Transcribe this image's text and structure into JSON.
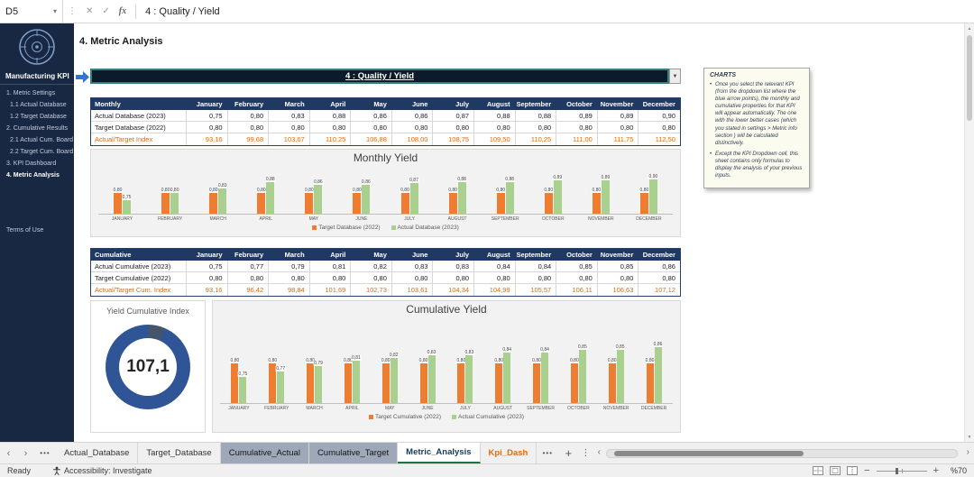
{
  "app": {
    "name_box": "D5",
    "formula": "4 : Quality / Yield"
  },
  "icons": {
    "name_box_arrow": "▾",
    "cancel": "✕",
    "enter": "✓",
    "fx": "fx",
    "grip": "⋮",
    "dropdown": "▼",
    "tab_prev": "‹",
    "tab_next": "›",
    "ellipsis": "•••",
    "add_sheet": "+",
    "more": "⋮",
    "scroll_up": "▲",
    "scroll_down": "▼",
    "scroll_left": "‹",
    "scroll_right": "›",
    "zoom_out": "−",
    "zoom_in": "+"
  },
  "sidebar": {
    "title": "Manufacturing KPI",
    "items": [
      {
        "label": "1. Metric Settings",
        "indent": 0,
        "active": false
      },
      {
        "label": "1.1 Actual Database",
        "indent": 1,
        "active": false
      },
      {
        "label": "1.2 Target Database",
        "indent": 1,
        "active": false
      },
      {
        "label": "2. Cumulative Results",
        "indent": 0,
        "active": false
      },
      {
        "label": "2.1 Actual Cum. Board",
        "indent": 1,
        "active": false
      },
      {
        "label": "2.2 Target Cum. Board",
        "indent": 1,
        "active": false
      },
      {
        "label": "3. KPI Dashboard",
        "indent": 0,
        "active": false
      },
      {
        "label": "4. Metric Analysis",
        "indent": 0,
        "active": true
      }
    ],
    "footer_link": "Terms of Use"
  },
  "main": {
    "section_title": "4. Metric Analysis",
    "kpi_selector": {
      "label": "4 : Quality / Yield"
    },
    "monthly_table": {
      "corner": "Monthly",
      "months": [
        "January",
        "February",
        "March",
        "April",
        "May",
        "June",
        "July",
        "August",
        "September",
        "October",
        "November",
        "December"
      ],
      "rows": [
        {
          "label": "Actual Database (2023)",
          "accent": false,
          "values": [
            "0,75",
            "0,80",
            "0,83",
            "0,88",
            "0,86",
            "0,86",
            "0,87",
            "0,88",
            "0,88",
            "0,89",
            "0,89",
            "0,90"
          ]
        },
        {
          "label": "Target Database (2022)",
          "accent": false,
          "values": [
            "0,80",
            "0,80",
            "0,80",
            "0,80",
            "0,80",
            "0,80",
            "0,80",
            "0,80",
            "0,80",
            "0,80",
            "0,80",
            "0,80"
          ]
        },
        {
          "label": "Actual/Target Index",
          "accent": true,
          "values": [
            "93,16",
            "99,68",
            "103,67",
            "110,25",
            "106,88",
            "108,00",
            "108,75",
            "109,50",
            "110,25",
            "111,00",
            "111,75",
            "112,50"
          ]
        }
      ]
    },
    "cumulative_table": {
      "corner": "Cumulative",
      "months": [
        "January",
        "February",
        "March",
        "April",
        "May",
        "June",
        "July",
        "August",
        "September",
        "October",
        "November",
        "December"
      ],
      "rows": [
        {
          "label": "Actual Cumulative (2023)",
          "accent": false,
          "values": [
            "0,75",
            "0,77",
            "0,79",
            "0,81",
            "0,82",
            "0,83",
            "0,83",
            "0,84",
            "0,84",
            "0,85",
            "0,85",
            "0,86"
          ]
        },
        {
          "label": "Target Cumulative (2022)",
          "accent": false,
          "values": [
            "0,80",
            "0,80",
            "0,80",
            "0,80",
            "0,80",
            "0,80",
            "0,80",
            "0,80",
            "0,80",
            "0,80",
            "0,80",
            "0,80"
          ]
        },
        {
          "label": "Actual/Target Cum. Index",
          "accent": true,
          "values": [
            "93,16",
            "96,42",
            "98,84",
            "101,69",
            "102,73",
            "103,61",
            "104,34",
            "104,99",
            "105,57",
            "106,11",
            "106,63",
            "107,12"
          ]
        }
      ]
    },
    "donut": {
      "title": "Yield Cumulative Index",
      "value": "107,1"
    }
  },
  "chart_data": [
    {
      "type": "bar",
      "title": "Monthly Yield",
      "categories": [
        "JANUARY",
        "FEBRUARY",
        "MARCH",
        "APRIL",
        "MAY",
        "JUNE",
        "JULY",
        "AUGUST",
        "SEPTEMBER",
        "OCTOBER",
        "NOVEMBER",
        "DECEMBER"
      ],
      "series": [
        {
          "name": "Target Database (2022)",
          "color": "#ED7D31",
          "values": [
            0.8,
            0.8,
            0.8,
            0.8,
            0.8,
            0.8,
            0.8,
            0.8,
            0.8,
            0.8,
            0.8,
            0.8
          ],
          "labels": [
            "0,80",
            "0,80",
            "0,80",
            "0,80",
            "0,80",
            "0,80",
            "0,80",
            "0,80",
            "0,80",
            "0,80",
            "0,80",
            "0,80"
          ]
        },
        {
          "name": "Actual Database (2023)",
          "color": "#A9D08E",
          "values": [
            0.75,
            0.8,
            0.83,
            0.88,
            0.86,
            0.86,
            0.87,
            0.88,
            0.88,
            0.89,
            0.89,
            0.9
          ],
          "labels": [
            "0,75",
            "0,80",
            "0,83",
            "0,88",
            "0,86",
            "0,86",
            "0,87",
            "0,88",
            "0,88",
            "0,89",
            "0,89",
            "0,90"
          ]
        }
      ],
      "ylim": [
        0.65,
        0.95
      ],
      "legend_position": "bottom"
    },
    {
      "type": "bar",
      "title": "Cumulative Yield",
      "categories": [
        "JANUARY",
        "FEBRUARY",
        "MARCH",
        "APRIL",
        "MAY",
        "JUNE",
        "JULY",
        "AUGUST",
        "SEPTEMBER",
        "OCTOBER",
        "NOVEMBER",
        "DECEMBER"
      ],
      "series": [
        {
          "name": "Target Cumulative (2022)",
          "color": "#ED7D31",
          "values": [
            0.8,
            0.8,
            0.8,
            0.8,
            0.8,
            0.8,
            0.8,
            0.8,
            0.8,
            0.8,
            0.8,
            0.8
          ],
          "labels": [
            "0,80",
            "0,80",
            "0,80",
            "0,80",
            "0,80",
            "0,80",
            "0,80",
            "0,80",
            "0,80",
            "0,80",
            "0,80",
            "0,80"
          ]
        },
        {
          "name": "Actual Cumulative (2023)",
          "color": "#A9D08E",
          "values": [
            0.75,
            0.77,
            0.79,
            0.81,
            0.82,
            0.83,
            0.83,
            0.84,
            0.84,
            0.85,
            0.85,
            0.86
          ],
          "labels": [
            "0,75",
            "0,77",
            "0,79",
            "0,81",
            "0,82",
            "0,83",
            "0,83",
            "0,84",
            "0,84",
            "0,85",
            "0,85",
            "0,86"
          ]
        }
      ],
      "ylim": [
        0.65,
        0.95
      ],
      "legend_position": "bottom"
    },
    {
      "type": "pie",
      "title": "Yield Cumulative Index",
      "value": 107.1,
      "display": "107,1",
      "segments": [
        {
          "name": "above-base",
          "value": 7.1,
          "color": "#44546A"
        },
        {
          "name": "base",
          "value": 100,
          "color": "#2F5597"
        }
      ]
    }
  ],
  "charts_note": {
    "title": "CHARTS",
    "bullets": [
      "Once you select the relevant KPI (from the dropdown list where the blue arrow points), the monthly and cumulative properties for that KPI will appear automatically. The one with the lower better cases (which you stated in settings > Metric info section ) will be calculated distinctively.",
      "Except the KPI Dropdown cell, this sheet contains only formulas to display the analysis of your previous inputs."
    ]
  },
  "sheet_tabs": [
    {
      "label": "Actual_Database",
      "style": "normal"
    },
    {
      "label": "Target_Database",
      "style": "normal"
    },
    {
      "label": "Cumulative_Actual",
      "style": "shaded"
    },
    {
      "label": "Cumulative_Target",
      "style": "shaded"
    },
    {
      "label": "Metric_Analysis",
      "style": "active"
    },
    {
      "label": "Kpi_Dash",
      "style": "orange"
    }
  ],
  "status_bar": {
    "ready": "Ready",
    "accessibility": "Accessibility: Investigate",
    "zoom": "%70"
  },
  "colors": {
    "sidebar_bg": "#182742",
    "table_header_bg": "#1F3864",
    "accent_orange": "#E26B0A",
    "bar_orange": "#ED7D31",
    "bar_green": "#A9D08E",
    "donut_blue": "#2F5597",
    "donut_dark": "#44546A",
    "selector_border": "#35827B"
  }
}
